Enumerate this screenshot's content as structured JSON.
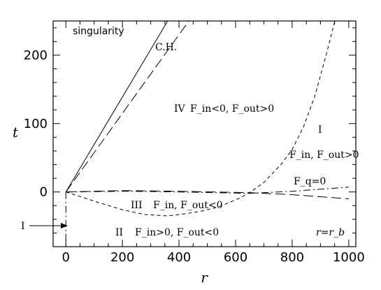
{
  "chart_data": {
    "type": "line",
    "xlabel": "r",
    "ylabel": "t",
    "xlim": [
      -45,
      1025
    ],
    "ylim": [
      -80,
      250
    ],
    "xticks": [
      0,
      200,
      400,
      600,
      800,
      1000
    ],
    "yticks": [
      0,
      100,
      200
    ],
    "series": [
      {
        "label": "singularity",
        "style": "solid",
        "x": [
          0,
          360
        ],
        "y": [
          0,
          250
        ]
      },
      {
        "label": "C.H.",
        "style": "longdash",
        "x": [
          0,
          435
        ],
        "y": [
          0,
          250
        ]
      },
      {
        "style": "dashed",
        "x": [
          0,
          60,
          120,
          200,
          280,
          360,
          420,
          480,
          540,
          580,
          620,
          660,
          700,
          760,
          800,
          840,
          880,
          920,
          960,
          1000
        ],
        "y": [
          0,
          -8,
          -16,
          -26,
          -33,
          -35,
          -32,
          -28,
          -22,
          -15,
          -8,
          2,
          14,
          40,
          62,
          95,
          140,
          200,
          265,
          320
        ]
      },
      {
        "label": "F_q=0",
        "style": "dashdot",
        "x": [
          0,
          200,
          400,
          650,
          800,
          1000
        ],
        "y": [
          0,
          1,
          0,
          -2,
          1,
          7
        ]
      },
      {
        "style": "longdash",
        "x": [
          0,
          200,
          400,
          650,
          800,
          1000
        ],
        "y": [
          0,
          2,
          1,
          -1,
          -4,
          -10
        ]
      },
      {
        "style": "dashdot",
        "x": [
          0,
          0
        ],
        "y": [
          0,
          -80
        ]
      }
    ],
    "region_labels": {
      "region_iv": "IV",
      "region_iv_cond": "F_in<0, F_out>0",
      "region_i": "I",
      "region_i_cond": "F_in, F_out>0",
      "region_iii": "III",
      "region_iii_cond": "F_in, F_out<0",
      "region_ii": "II",
      "region_ii_cond": "F_in>0, F_out<0",
      "fq_label": "F_q=0",
      "rb_label": "r=r_b",
      "arrow_label": "I"
    }
  }
}
